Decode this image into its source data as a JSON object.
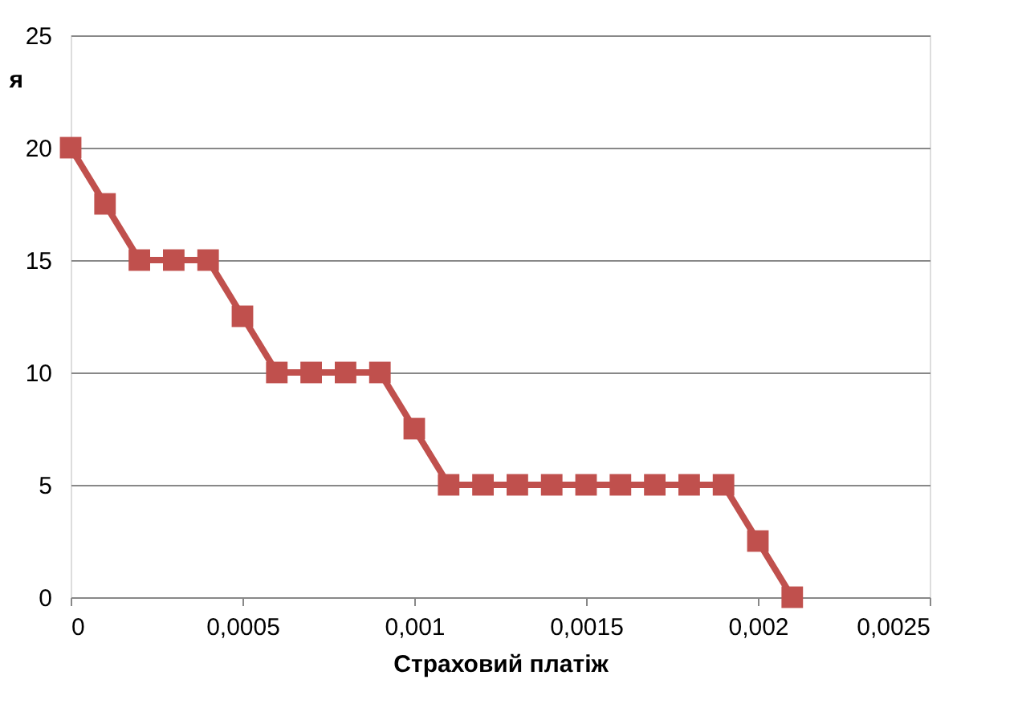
{
  "chart_data": {
    "type": "line",
    "xlabel": "Страховий платіж",
    "ylabel": "я",
    "x": [
      0,
      0.0001,
      0.0002,
      0.0003,
      0.0004,
      0.0005,
      0.0006,
      0.0007,
      0.0008,
      0.0009,
      0.001,
      0.0011,
      0.0012,
      0.0013,
      0.0014,
      0.0015,
      0.0016,
      0.0017,
      0.0018,
      0.0019,
      0.002,
      0.0021
    ],
    "series": [
      {
        "color": "#c0504d",
        "values": [
          20,
          17.5,
          15,
          15,
          15,
          12.5,
          10,
          10,
          10,
          10,
          7.5,
          5,
          5,
          5,
          5,
          5,
          5,
          5,
          5,
          5,
          2.5,
          0
        ]
      }
    ],
    "xlim": [
      0,
      0.0025
    ],
    "xticks": [
      0,
      {
        "value": 0.0005,
        "label": "0,0005"
      },
      {
        "value": 0.001,
        "label": "0,001"
      },
      {
        "value": 0.0015,
        "label": "0,0015"
      },
      {
        "value": 0.002,
        "label": "0,002"
      },
      {
        "value": 0.0025,
        "label": "0,0025"
      }
    ],
    "ylim": [
      0,
      25
    ],
    "yticks": [
      0,
      5,
      10,
      15,
      20,
      25
    ],
    "grid": "y",
    "marker": "square",
    "line_style": "solid"
  }
}
